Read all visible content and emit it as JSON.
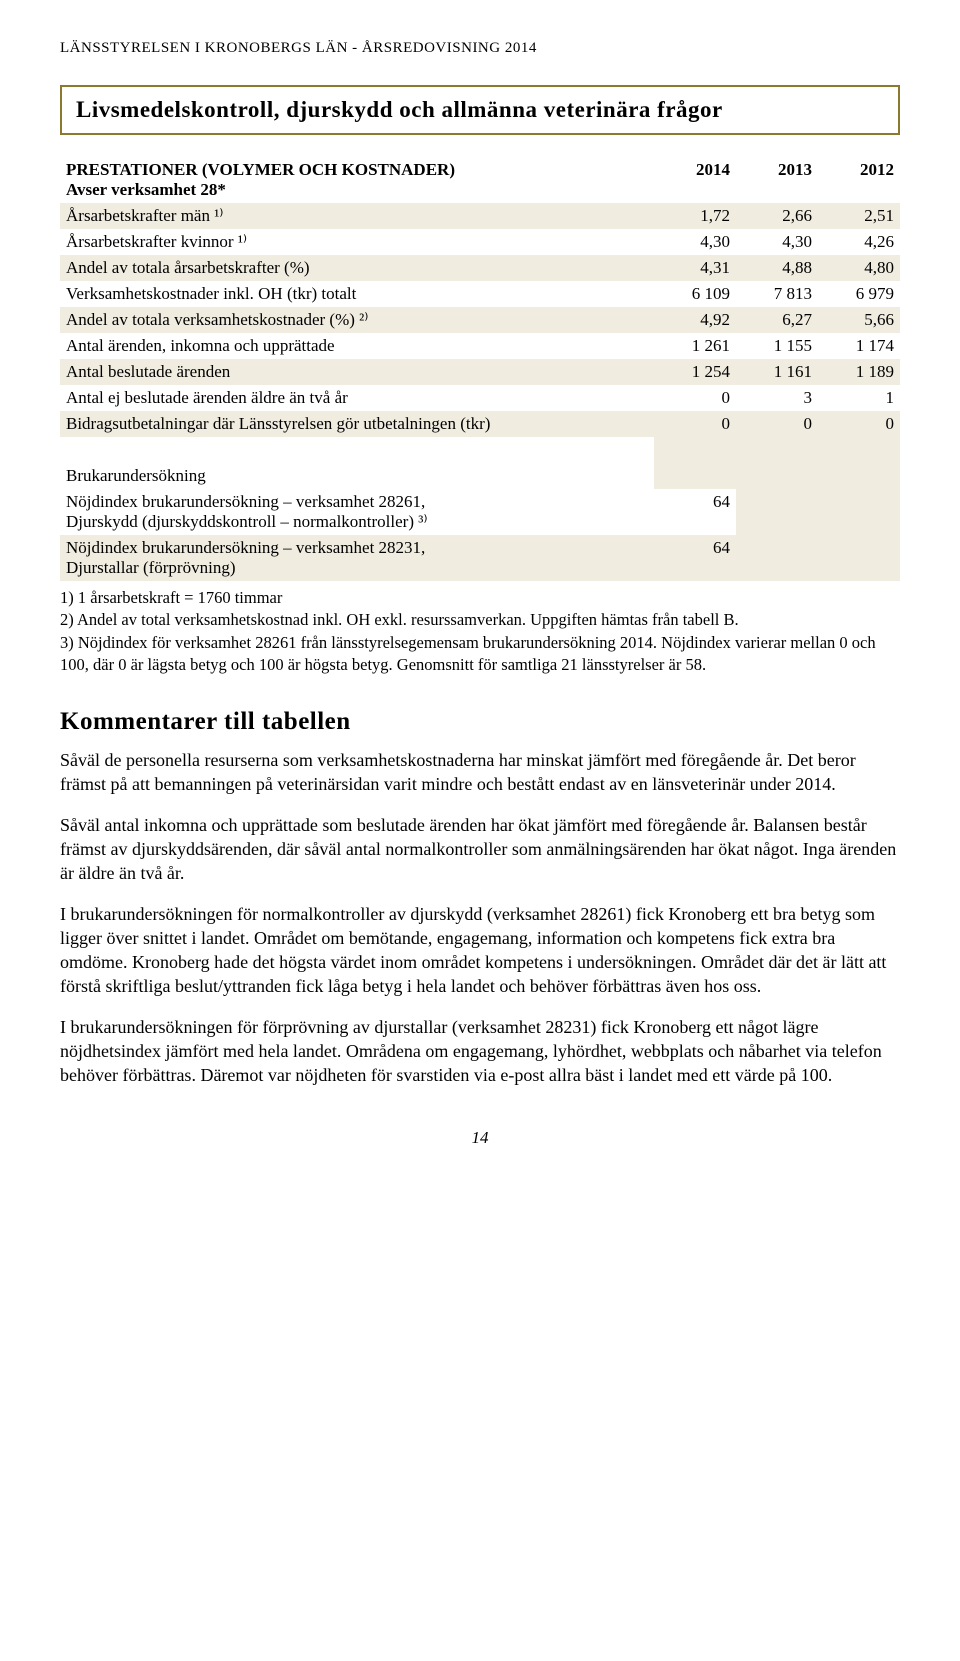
{
  "header": "LÄNSSTYRELSEN I KRONOBERGS LÄN - ÅRSREDOVISNING 2014",
  "section_title": "Livsmedelskontroll, djurskydd och allmänna veterinära frågor",
  "table": {
    "header": {
      "title_line1": "PRESTATIONER (VOLYMER OCH KOSTNADER)",
      "title_line2": "Avser verksamhet 28*",
      "y2014": "2014",
      "y2013": "2013",
      "y2012": "2012"
    },
    "rows": [
      {
        "label": "Årsarbetskrafter män ¹⁾",
        "v14": "1,72",
        "v13": "2,66",
        "v12": "2,51",
        "shade": true
      },
      {
        "label": "Årsarbetskrafter kvinnor ¹⁾",
        "v14": "4,30",
        "v13": "4,30",
        "v12": "4,26",
        "shade": false
      },
      {
        "label": "Andel av totala årsarbetskrafter (%)",
        "v14": "4,31",
        "v13": "4,88",
        "v12": "4,80",
        "shade": true
      },
      {
        "label": "Verksamhetskostnader inkl. OH (tkr) totalt",
        "v14": "6 109",
        "v13": "7 813",
        "v12": "6 979",
        "shade": false
      },
      {
        "label": "Andel av totala verksamhetskostnader (%) ²⁾",
        "v14": "4,92",
        "v13": "6,27",
        "v12": "5,66",
        "shade": true
      },
      {
        "label": "Antal ärenden, inkomna och upprättade",
        "v14": "1 261",
        "v13": "1 155",
        "v12": "1 174",
        "shade": false
      },
      {
        "label": "Antal beslutade ärenden",
        "v14": "1 254",
        "v13": "1 161",
        "v12": "1 189",
        "shade": true
      },
      {
        "label": "Antal ej beslutade ärenden äldre än två år",
        "v14": "0",
        "v13": "3",
        "v12": "1",
        "shade": false
      },
      {
        "label": "Bidragsutbetalningar där Länsstyrelsen gör utbetalningen (tkr)",
        "v14": "0",
        "v13": "0",
        "v12": "0",
        "shade": true
      }
    ],
    "brukar_label": "Brukarundersökning",
    "nojd1_line1": "Nöjdindex brukarundersökning – verksamhet 28261,",
    "nojd1_line2": "Djurskydd (djurskyddskontroll – normalkontroller) ³⁾",
    "nojd1_val": "64",
    "nojd2_line1": "Nöjdindex brukarundersökning – verksamhet 28231,",
    "nojd2_line2": "Djurstallar (förprövning)",
    "nojd2_val": "64"
  },
  "footnotes": {
    "f1": "1) 1 årsarbetskraft = 1760 timmar",
    "f2": "2) Andel av total verksamhetskostnad inkl. OH exkl. resurssamverkan. Uppgiften hämtas från tabell B.",
    "f3": "3) Nöjdindex för verksamhet 28261 från länsstyrelsegemensam brukarundersökning 2014. Nöjdindex varierar mellan 0 och 100, där 0 är lägsta betyg och 100 är högsta betyg. Genomsnitt för samtliga 21 länsstyrelser är 58."
  },
  "subhead": "Kommentarer till tabellen",
  "paragraphs": {
    "p1": "Såväl de personella resurserna som verksamhetskostnaderna har minskat jämfört med föregående år. Det beror främst på att bemanningen på veterinärsidan varit mindre och bestått endast av en länsveterinär under 2014.",
    "p2": "Såväl antal inkomna och upprättade som beslutade ärenden har ökat jämfört med föregående år. Balansen består främst av djurskyddsärenden, där såväl antal normalkontroller som anmälningsärenden har ökat något. Inga ärenden är äldre än två år.",
    "p3": "I brukarundersökningen för normalkontroller av djurskydd (verksamhet 28261) fick Kronoberg ett bra betyg som ligger över snittet i landet. Området om bemötande, engagemang, information och kompetens fick extra bra omdöme. Kronoberg hade det högsta värdet inom området kompetens i undersökningen. Området där det är lätt att förstå skriftliga beslut/yttranden fick låga betyg i hela landet och behöver förbättras även hos oss.",
    "p4": "I brukarundersökningen för förprövning av djurstallar (verksamhet 28231) fick Kronoberg ett något lägre nöjdhetsindex jämfört med hela landet. Områdena om engagemang, lyhördhet, webbplats och nåbarhet via telefon behöver förbättras. Däremot var nöjdheten för svarstiden via e-post allra bäst i landet med ett värde på 100."
  },
  "page_number": "14",
  "colors": {
    "border_gold": "#8b7a2d",
    "shade_bg": "#f0ece0",
    "text": "#000000",
    "background": "#ffffff"
  }
}
